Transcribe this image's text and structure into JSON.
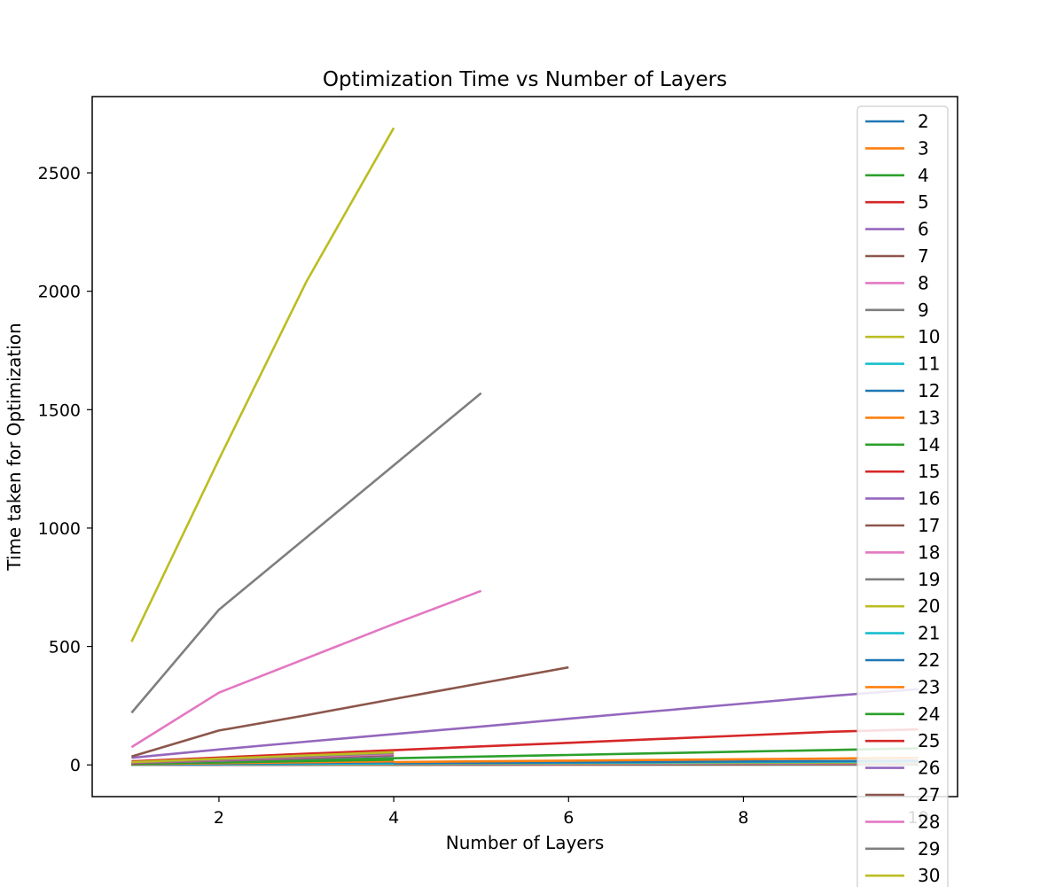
{
  "chart_data": {
    "type": "line",
    "title": "Optimization Time vs Number of Layers",
    "xlabel": "Number of Layers",
    "ylabel": "Time taken for Optimization",
    "xlim": [
      0.55,
      10.45
    ],
    "ylim": [
      -134,
      2822
    ],
    "xticks": [
      2,
      4,
      6,
      8,
      10
    ],
    "yticks": [
      0,
      500,
      1000,
      1500,
      2000,
      2500
    ],
    "legend_position": "upper-right",
    "grid": false,
    "series": [
      {
        "name": "2",
        "color": "#1f77b4",
        "x": [
          1,
          2,
          3,
          4,
          5,
          6,
          7,
          8,
          9,
          10
        ],
        "y": [
          0.1,
          0.2,
          0.3,
          0.4,
          0.5,
          0.6,
          0.7,
          0.8,
          0.9,
          1.0
        ]
      },
      {
        "name": "3",
        "color": "#ff7f0e",
        "x": [
          1,
          2,
          3,
          4,
          5,
          6,
          7,
          8,
          9,
          10
        ],
        "y": [
          0.2,
          0.4,
          0.6,
          0.8,
          1.0,
          1.2,
          1.4,
          1.6,
          1.8,
          2.0
        ]
      },
      {
        "name": "4",
        "color": "#2ca02c",
        "x": [
          1,
          2,
          3,
          4,
          5,
          6,
          7,
          8,
          9,
          10
        ],
        "y": [
          0.3,
          0.6,
          0.9,
          1.2,
          1.5,
          1.8,
          2.1,
          2.4,
          2.7,
          3.0
        ]
      },
      {
        "name": "5",
        "color": "#d62728",
        "x": [
          1,
          2,
          3,
          4,
          5,
          6,
          7,
          8,
          9,
          10
        ],
        "y": [
          0.4,
          0.8,
          1.2,
          1.6,
          2.0,
          2.4,
          2.8,
          3.2,
          3.6,
          4.0
        ]
      },
      {
        "name": "6",
        "color": "#9467bd",
        "x": [
          1,
          2,
          3,
          4,
          5,
          6,
          7,
          8,
          9,
          10
        ],
        "y": [
          0.5,
          1.0,
          1.5,
          2.0,
          2.5,
          3.0,
          3.5,
          4.0,
          4.5,
          5.0
        ]
      },
      {
        "name": "7",
        "color": "#8c564b",
        "x": [
          1,
          2,
          3,
          4,
          5,
          6,
          7,
          8,
          9,
          10
        ],
        "y": [
          0.6,
          1.2,
          1.8,
          2.4,
          3.0,
          3.6,
          4.2,
          4.8,
          5.4,
          6.0
        ]
      },
      {
        "name": "8",
        "color": "#e377c2",
        "x": [
          1,
          2,
          3,
          4,
          5,
          6,
          7,
          8,
          9,
          10
        ],
        "y": [
          0.8,
          1.6,
          2.4,
          3.2,
          4.0,
          4.8,
          5.6,
          6.4,
          7.2,
          8.0
        ]
      },
      {
        "name": "9",
        "color": "#7f7f7f",
        "x": [
          1,
          2,
          3,
          4,
          5,
          6,
          7,
          8,
          9,
          10
        ],
        "y": [
          1,
          2,
          3,
          4,
          5,
          6,
          7,
          8,
          9,
          10
        ]
      },
      {
        "name": "10",
        "color": "#bcbd22",
        "x": [
          1,
          2,
          3,
          4,
          5,
          6,
          7,
          8,
          9,
          10
        ],
        "y": [
          1.2,
          2.4,
          3.6,
          4.8,
          6.0,
          7.2,
          8.4,
          9.6,
          10.8,
          12
        ]
      },
      {
        "name": "11",
        "color": "#17becf",
        "x": [
          1,
          2,
          3,
          4,
          5,
          6,
          7,
          8,
          9,
          10
        ],
        "y": [
          1.5,
          3,
          4.5,
          6,
          7.5,
          9,
          10.5,
          12,
          13.5,
          15
        ]
      },
      {
        "name": "12",
        "color": "#1f77b4",
        "x": [
          1,
          2,
          3,
          4,
          5,
          6,
          7,
          8,
          9,
          10
        ],
        "y": [
          1.8,
          3.6,
          5.4,
          7.2,
          9,
          10.8,
          12.6,
          14.4,
          16.2,
          18
        ]
      },
      {
        "name": "13",
        "color": "#ff7f0e",
        "x": [
          1,
          2,
          3,
          4,
          5,
          6,
          7,
          8,
          9,
          10
        ],
        "y": [
          3,
          6,
          9,
          12,
          15,
          18,
          21,
          24,
          27,
          30
        ]
      },
      {
        "name": "14",
        "color": "#2ca02c",
        "x": [
          1,
          2,
          3,
          4,
          5,
          6,
          7,
          8,
          9,
          10
        ],
        "y": [
          7,
          14,
          21,
          28,
          35,
          42,
          49,
          56,
          63,
          70
        ]
      },
      {
        "name": "15",
        "color": "#d62728",
        "x": [
          1,
          2,
          3,
          4,
          5,
          6,
          7,
          8,
          9,
          10
        ],
        "y": [
          15,
          31,
          47,
          62,
          78,
          93,
          109,
          124,
          140,
          150
        ]
      },
      {
        "name": "16",
        "color": "#9467bd",
        "x": [
          1,
          2,
          3,
          4,
          5,
          6,
          7,
          8,
          9,
          10
        ],
        "y": [
          30,
          65,
          98,
          130,
          162,
          195,
          227,
          259,
          291,
          320
        ]
      },
      {
        "name": "17",
        "color": "#8c564b",
        "x": [
          1,
          2,
          3,
          4,
          5,
          6
        ],
        "y": [
          35,
          145,
          210,
          278,
          345,
          412
        ]
      },
      {
        "name": "18",
        "color": "#e377c2",
        "x": [
          1,
          2,
          3,
          4,
          5
        ],
        "y": [
          75,
          305,
          450,
          595,
          735
        ]
      },
      {
        "name": "19",
        "color": "#7f7f7f",
        "x": [
          1,
          2,
          3,
          4,
          5
        ],
        "y": [
          220,
          655,
          960,
          1265,
          1570
        ]
      },
      {
        "name": "20",
        "color": "#bcbd22",
        "x": [
          1,
          2,
          3,
          4
        ],
        "y": [
          520,
          1290,
          2040,
          2690
        ]
      },
      {
        "name": "21",
        "color": "#17becf",
        "x": [
          1,
          2,
          3,
          4
        ],
        "y": [
          1,
          3,
          5,
          7
        ]
      },
      {
        "name": "22",
        "color": "#1f77b4",
        "x": [
          1,
          2,
          3,
          4
        ],
        "y": [
          2,
          5,
          8,
          11
        ]
      },
      {
        "name": "23",
        "color": "#ff7f0e",
        "x": [
          1,
          2,
          3,
          4
        ],
        "y": [
          3,
          7,
          11,
          15
        ]
      },
      {
        "name": "24",
        "color": "#2ca02c",
        "x": [
          1,
          2,
          3,
          4
        ],
        "y": [
          4,
          10,
          16,
          22
        ]
      },
      {
        "name": "25",
        "color": "#d62728",
        "x": [
          1,
          2,
          3,
          4
        ],
        "y": [
          6,
          28,
          45,
          60
        ]
      },
      {
        "name": "26",
        "color": "#9467bd",
        "x": [
          1,
          2,
          3,
          4
        ],
        "y": [
          8,
          18,
          28,
          38
        ]
      },
      {
        "name": "27",
        "color": "#8c564b",
        "x": [
          1,
          2,
          3,
          4
        ],
        "y": [
          9,
          20,
          31,
          42
        ]
      },
      {
        "name": "28",
        "color": "#e377c2",
        "x": [
          1,
          2,
          3,
          4
        ],
        "y": [
          10,
          22,
          34,
          46
        ]
      },
      {
        "name": "29",
        "color": "#7f7f7f",
        "x": [
          1,
          2,
          3,
          4
        ],
        "y": [
          11,
          24,
          37,
          50
        ]
      },
      {
        "name": "30",
        "color": "#bcbd22",
        "x": [
          1,
          2,
          3,
          4
        ],
        "y": [
          12,
          26,
          40,
          54
        ]
      }
    ]
  }
}
